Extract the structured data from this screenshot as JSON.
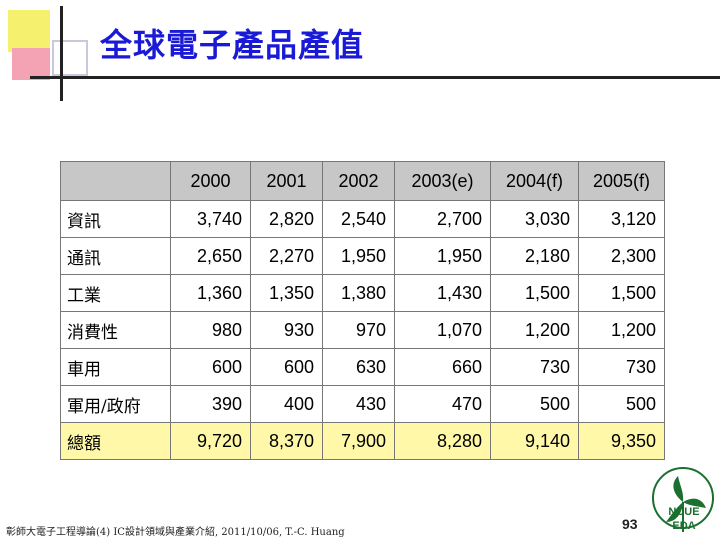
{
  "slide": {
    "title": "全球電子產品產值",
    "footer": "彰師大電子工程導論(4) IC設計領域與產業介紹, 2011/10/06, T.-C. Huang",
    "page_number": "93",
    "logo": {
      "line1": "NCUE",
      "line2": "EDA",
      "color": "#1b6f2f"
    }
  },
  "table": {
    "columns": [
      "2000",
      "2001",
      "2002",
      "2003(e)",
      "2004(f)",
      "2005(f)"
    ],
    "rows": [
      {
        "label": "資訊",
        "values": [
          "3,740",
          "2,820",
          "2,540",
          "2,700",
          "3,030",
          "3,120"
        ]
      },
      {
        "label": "通訊",
        "values": [
          "2,650",
          "2,270",
          "1,950",
          "1,950",
          "2,180",
          "2,300"
        ]
      },
      {
        "label": "工業",
        "values": [
          "1,360",
          "1,350",
          "1,380",
          "1,430",
          "1,500",
          "1,500"
        ]
      },
      {
        "label": "消費性",
        "values": [
          "980",
          "930",
          "970",
          "1,070",
          "1,200",
          "1,200"
        ]
      },
      {
        "label": "車用",
        "values": [
          "600",
          "600",
          "630",
          "660",
          "730",
          "730"
        ]
      },
      {
        "label": "軍用/政府",
        "values": [
          "390",
          "400",
          "430",
          "470",
          "500",
          "500"
        ]
      },
      {
        "label": "總額",
        "values": [
          "9,720",
          "8,370",
          "7,900",
          "8,280",
          "9,140",
          "9,350"
        ]
      }
    ],
    "header_color": "#c7c7c7",
    "total_row_color": "#fff8a8"
  }
}
